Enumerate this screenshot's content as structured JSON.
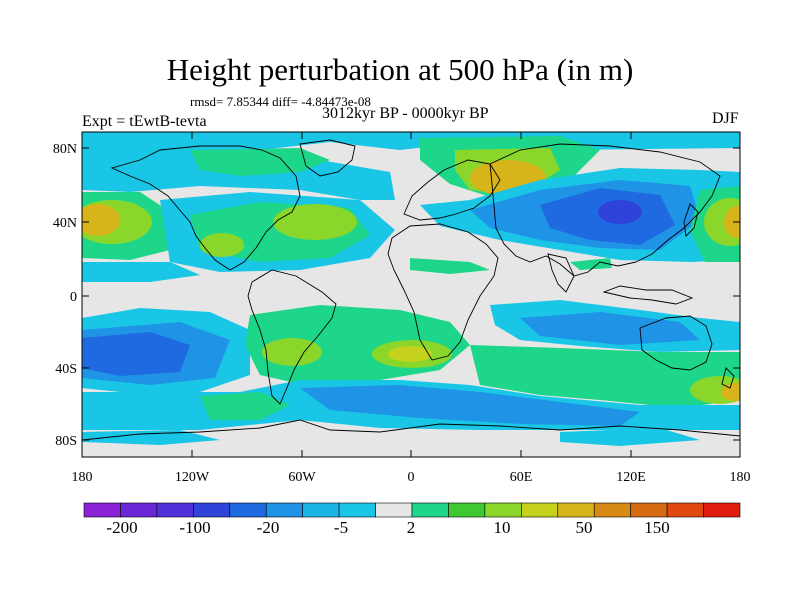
{
  "figure": {
    "title": "Height perturbation at 500 hPa (in m)",
    "rmsd_line": "rmsd= 7.85344 diff= -4.84473e-08",
    "expt_label": "Expt = tEwtB-tevta",
    "period_label": "3012kyr BP - 0000kyr BP",
    "season_label": "DJF"
  },
  "axes": {
    "lat_ticks": [
      "80N",
      "40N",
      "0",
      "40S",
      "80S"
    ],
    "lon_ticks": [
      "180",
      "120W",
      "60W",
      "0",
      "60E",
      "120E",
      "180"
    ]
  },
  "colorbar": {
    "colors": [
      "#8c22d6",
      "#6b27d6",
      "#5030d8",
      "#2f43d8",
      "#1f6ae0",
      "#1f93e6",
      "#1ab4e4",
      "#19c6e6",
      "#e6e6e6",
      "#1ed68a",
      "#3ec832",
      "#8ad62a",
      "#c4d21e",
      "#d6b41a",
      "#d88a16",
      "#d66a12",
      "#e04a10",
      "#e01c0c"
    ],
    "labels": [
      "-200",
      "-100",
      "-20",
      "-5",
      "2",
      "10",
      "50",
      "150"
    ]
  },
  "field_colors": {
    "neutral": "#e6e6e6",
    "light_blue": "#19c6e6",
    "mid_blue": "#1ab4e4",
    "blue": "#1f93e6",
    "deep_blue": "#1f6ae0",
    "navy": "#2f43d8",
    "green": "#1ed68a",
    "bright_green": "#3ec832",
    "yellow_green": "#8ad62a",
    "yellow": "#c4d21e",
    "orange": "#d6b41a",
    "coast": "#000000"
  }
}
